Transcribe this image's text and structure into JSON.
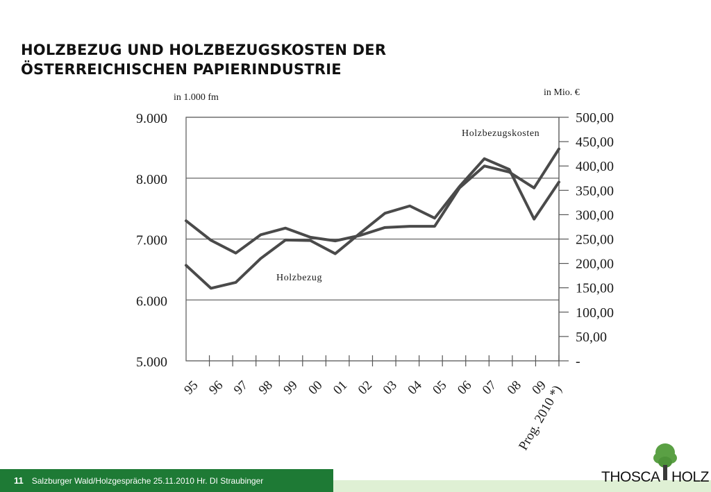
{
  "title_lines": [
    "HOLZBEZUG UND HOLZBEZUGSKOSTEN DER",
    "ÖSTERREICHISCHEN PAPIERINDUSTRIE"
  ],
  "footer": {
    "page_number": "11",
    "text": "Salzburger Wald/Holzgespräche 25.11.2010 Hr. DI Straubinger"
  },
  "logo": {
    "left": "THOSCA",
    "right": "HOLZ"
  },
  "colors": {
    "line": "#4a4a4a",
    "footer_green": "#1e7a35",
    "footer_light": "#dff0d4",
    "tree_green": "#5aa044"
  },
  "chart_data": {
    "type": "line",
    "left_unit_label": "in 1.000 fm",
    "right_unit_label": "in Mio. €",
    "categories": [
      "95",
      "96",
      "97",
      "98",
      "99",
      "00",
      "01",
      "02",
      "03",
      "04",
      "05",
      "06",
      "07",
      "08",
      "09",
      "Prog. 2010 *)"
    ],
    "left_axis": {
      "min": 5000,
      "max": 9000,
      "ticks": [
        5000,
        6000,
        7000,
        8000,
        9000
      ],
      "tick_labels": [
        "5.000",
        "6.000",
        "7.000",
        "8.000",
        "9.000"
      ]
    },
    "right_axis": {
      "min": 0,
      "max": 500,
      "ticks": [
        0,
        50,
        100,
        150,
        200,
        250,
        300,
        350,
        400,
        450,
        500
      ],
      "tick_labels": [
        "-",
        "50,00",
        "100,00",
        "150,00",
        "200,00",
        "250,00",
        "300,00",
        "350,00",
        "400,00",
        "450,00",
        "500,00"
      ]
    },
    "grid": true,
    "series": [
      {
        "name": "Holzbezug",
        "axis": "left",
        "values": [
          7300,
          6980,
          6770,
          7070,
          7180,
          7030,
          6970,
          7060,
          7190,
          7210,
          7210,
          7840,
          8200,
          8100,
          7840,
          8480
        ]
      },
      {
        "name": "Holzbezugskosten",
        "axis": "right",
        "values": [
          196,
          149,
          161,
          210,
          248,
          247,
          220,
          262,
          303,
          318,
          293,
          358,
          415,
          393,
          291,
          367
        ]
      }
    ]
  }
}
